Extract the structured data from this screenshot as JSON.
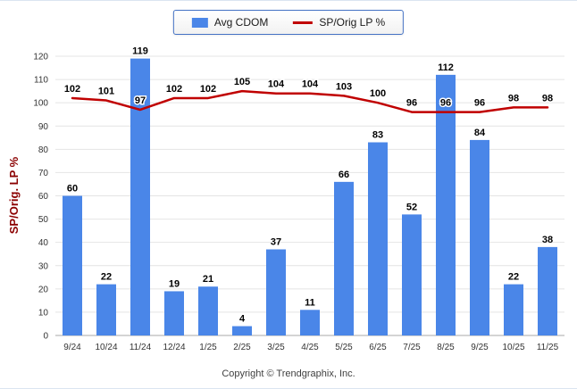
{
  "legend": {
    "bar_label": "Avg CDOM",
    "line_label": "SP/Orig LP %"
  },
  "footer": "Copyright © Trendgraphix, Inc.",
  "colors": {
    "bar": "#4a86e8",
    "line": "#c00000",
    "legend_border": "#4472c4",
    "grid": "#e4e4e4",
    "axis": "#aaaaaa",
    "tick_text": "#333333",
    "value_text": "#000000",
    "y_title_text": "#8b0000"
  },
  "chart_data": {
    "type": "bar",
    "categories": [
      "9/24",
      "10/24",
      "11/24",
      "12/24",
      "1/25",
      "2/25",
      "3/25",
      "4/25",
      "5/25",
      "6/25",
      "7/25",
      "8/25",
      "9/25",
      "10/25",
      "11/25"
    ],
    "series": [
      {
        "name": "Avg CDOM",
        "type": "bar",
        "values": [
          60,
          22,
          119,
          19,
          21,
          4,
          37,
          11,
          66,
          83,
          52,
          112,
          84,
          22,
          38
        ]
      },
      {
        "name": "SP/Orig LP %",
        "type": "line",
        "values": [
          102,
          101,
          97,
          102,
          102,
          105,
          104,
          104,
          103,
          100,
          96,
          96,
          96,
          98,
          98
        ]
      }
    ],
    "title": "",
    "xlabel": "",
    "ylabel": "SP/Orig. LP %",
    "ylim": [
      0,
      120
    ],
    "ytick_step": 10,
    "grid": true,
    "legend_position": "top"
  }
}
